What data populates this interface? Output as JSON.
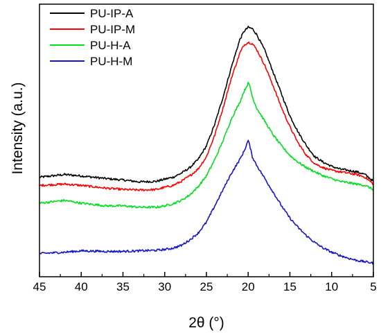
{
  "chart_data": {
    "type": "line",
    "xlabel": "2θ (°)",
    "ylabel": "Intensity (a.u.)",
    "xlim": [
      45,
      5
    ],
    "x_reversed": true,
    "ylim": [
      0,
      1
    ],
    "y_ticks_labeled": false,
    "x_ticks": [
      45,
      40,
      35,
      30,
      25,
      20,
      15,
      10,
      5
    ],
    "x_tick_labels": [
      "45",
      "40",
      "35",
      "30",
      "25",
      "20",
      "15",
      "10",
      "5"
    ],
    "grid": false,
    "legend_position": "top-left",
    "series": [
      {
        "name": "PU-IP-A",
        "color": "#000000",
        "x": [
          45,
          42,
          40,
          37,
          35,
          33,
          31,
          30,
          29,
          28,
          27,
          26,
          25,
          24,
          23,
          22,
          21,
          20.5,
          20,
          19.5,
          19,
          18,
          17,
          16,
          15,
          14,
          13,
          12,
          11,
          10,
          9,
          8,
          7,
          6,
          5
        ],
        "values": [
          0.365,
          0.375,
          0.37,
          0.36,
          0.355,
          0.348,
          0.35,
          0.358,
          0.365,
          0.38,
          0.4,
          0.43,
          0.48,
          0.56,
          0.66,
          0.77,
          0.87,
          0.9,
          0.915,
          0.91,
          0.89,
          0.83,
          0.75,
          0.67,
          0.59,
          0.53,
          0.48,
          0.44,
          0.42,
          0.405,
          0.395,
          0.39,
          0.385,
          0.375,
          0.35
        ]
      },
      {
        "name": "PU-IP-M",
        "color": "#ff0000",
        "x": [
          45,
          42,
          40,
          37,
          35,
          33,
          31,
          30,
          29,
          28,
          27,
          26,
          25,
          24,
          23,
          22,
          21,
          20.5,
          20,
          19.5,
          19,
          18,
          17,
          16,
          15,
          14,
          13,
          12,
          11,
          10,
          9,
          8,
          7,
          6,
          5
        ],
        "values": [
          0.335,
          0.34,
          0.335,
          0.325,
          0.32,
          0.318,
          0.32,
          0.328,
          0.335,
          0.35,
          0.37,
          0.395,
          0.44,
          0.52,
          0.62,
          0.73,
          0.82,
          0.85,
          0.86,
          0.855,
          0.835,
          0.775,
          0.7,
          0.62,
          0.55,
          0.49,
          0.445,
          0.415,
          0.4,
          0.39,
          0.385,
          0.38,
          0.375,
          0.365,
          0.34
        ]
      },
      {
        "name": "PU-H-A",
        "color": "#00e020",
        "x": [
          45,
          42,
          40,
          37,
          35,
          33,
          31,
          30,
          29,
          28,
          27,
          26,
          25,
          24,
          23,
          22,
          21,
          20.5,
          20,
          19.8,
          19.5,
          19,
          18,
          17,
          16,
          15,
          14,
          13,
          12,
          11,
          10,
          9,
          8,
          7,
          6,
          5
        ],
        "values": [
          0.27,
          0.28,
          0.27,
          0.26,
          0.26,
          0.255,
          0.255,
          0.26,
          0.268,
          0.28,
          0.3,
          0.33,
          0.37,
          0.43,
          0.5,
          0.58,
          0.64,
          0.68,
          0.71,
          0.7,
          0.66,
          0.62,
          0.57,
          0.52,
          0.48,
          0.445,
          0.42,
          0.4,
          0.385,
          0.37,
          0.36,
          0.35,
          0.345,
          0.34,
          0.335,
          0.32
        ]
      },
      {
        "name": "PU-H-M",
        "color": "#1414c8",
        "x": [
          45,
          42,
          40,
          37,
          35,
          33,
          31,
          30,
          29,
          28,
          27,
          26,
          25,
          24,
          23,
          22,
          21,
          20.5,
          20,
          19.8,
          19.5,
          19,
          18,
          17,
          16,
          15,
          14,
          13,
          12,
          11,
          10,
          9,
          8,
          7,
          6,
          5
        ],
        "values": [
          0.085,
          0.09,
          0.095,
          0.093,
          0.093,
          0.095,
          0.097,
          0.1,
          0.105,
          0.115,
          0.135,
          0.16,
          0.2,
          0.26,
          0.32,
          0.38,
          0.43,
          0.46,
          0.5,
          0.48,
          0.44,
          0.41,
          0.36,
          0.31,
          0.26,
          0.215,
          0.18,
          0.15,
          0.125,
          0.105,
          0.09,
          0.078,
          0.068,
          0.06,
          0.055,
          0.05
        ]
      }
    ]
  }
}
